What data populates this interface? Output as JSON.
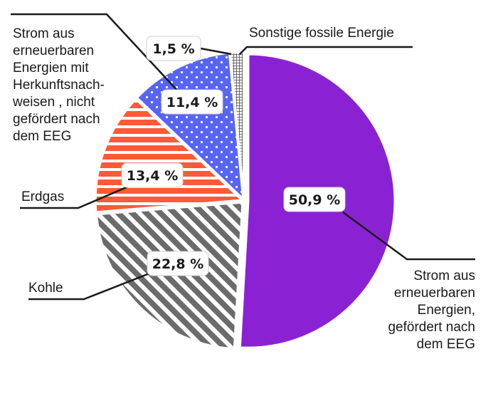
{
  "chart_data": {
    "type": "pie",
    "title": "",
    "colors": {
      "eeg": "#8a22d4",
      "sonstige": "#e8e8e8",
      "herkunft": "#5865f2",
      "erdgas": "#ff5a36",
      "kohle": "#6b6b6b"
    },
    "slices": [
      {
        "key": "eeg",
        "value": 50.9,
        "value_label": "50,9 %",
        "label_lines": [
          "Strom aus",
          "erneuerbaren",
          "Energien,",
          "gefördert nach",
          "dem EEG"
        ],
        "pattern": "solid"
      },
      {
        "key": "kohle",
        "value": 22.8,
        "value_label": "22,8 %",
        "label_lines": [
          "Kohle"
        ],
        "pattern": "diagonal-stripes"
      },
      {
        "key": "erdgas",
        "value": 13.4,
        "value_label": "13,4 %",
        "label_lines": [
          "Erdgas"
        ],
        "pattern": "horizontal-stripes"
      },
      {
        "key": "herkunft",
        "value": 11.4,
        "value_label": "11,4 %",
        "label_lines": [
          "Strom aus",
          "erneuerbaren",
          "Energien mit",
          "Herkunftsnach-",
          "weisen , nicht",
          "gefördert nach",
          "dem EEG"
        ],
        "pattern": "dots"
      },
      {
        "key": "sonstige",
        "value": 1.5,
        "value_label": "1,5 %",
        "label_lines": [
          "Sonstige fossile Energie"
        ],
        "pattern": "grid"
      }
    ]
  }
}
